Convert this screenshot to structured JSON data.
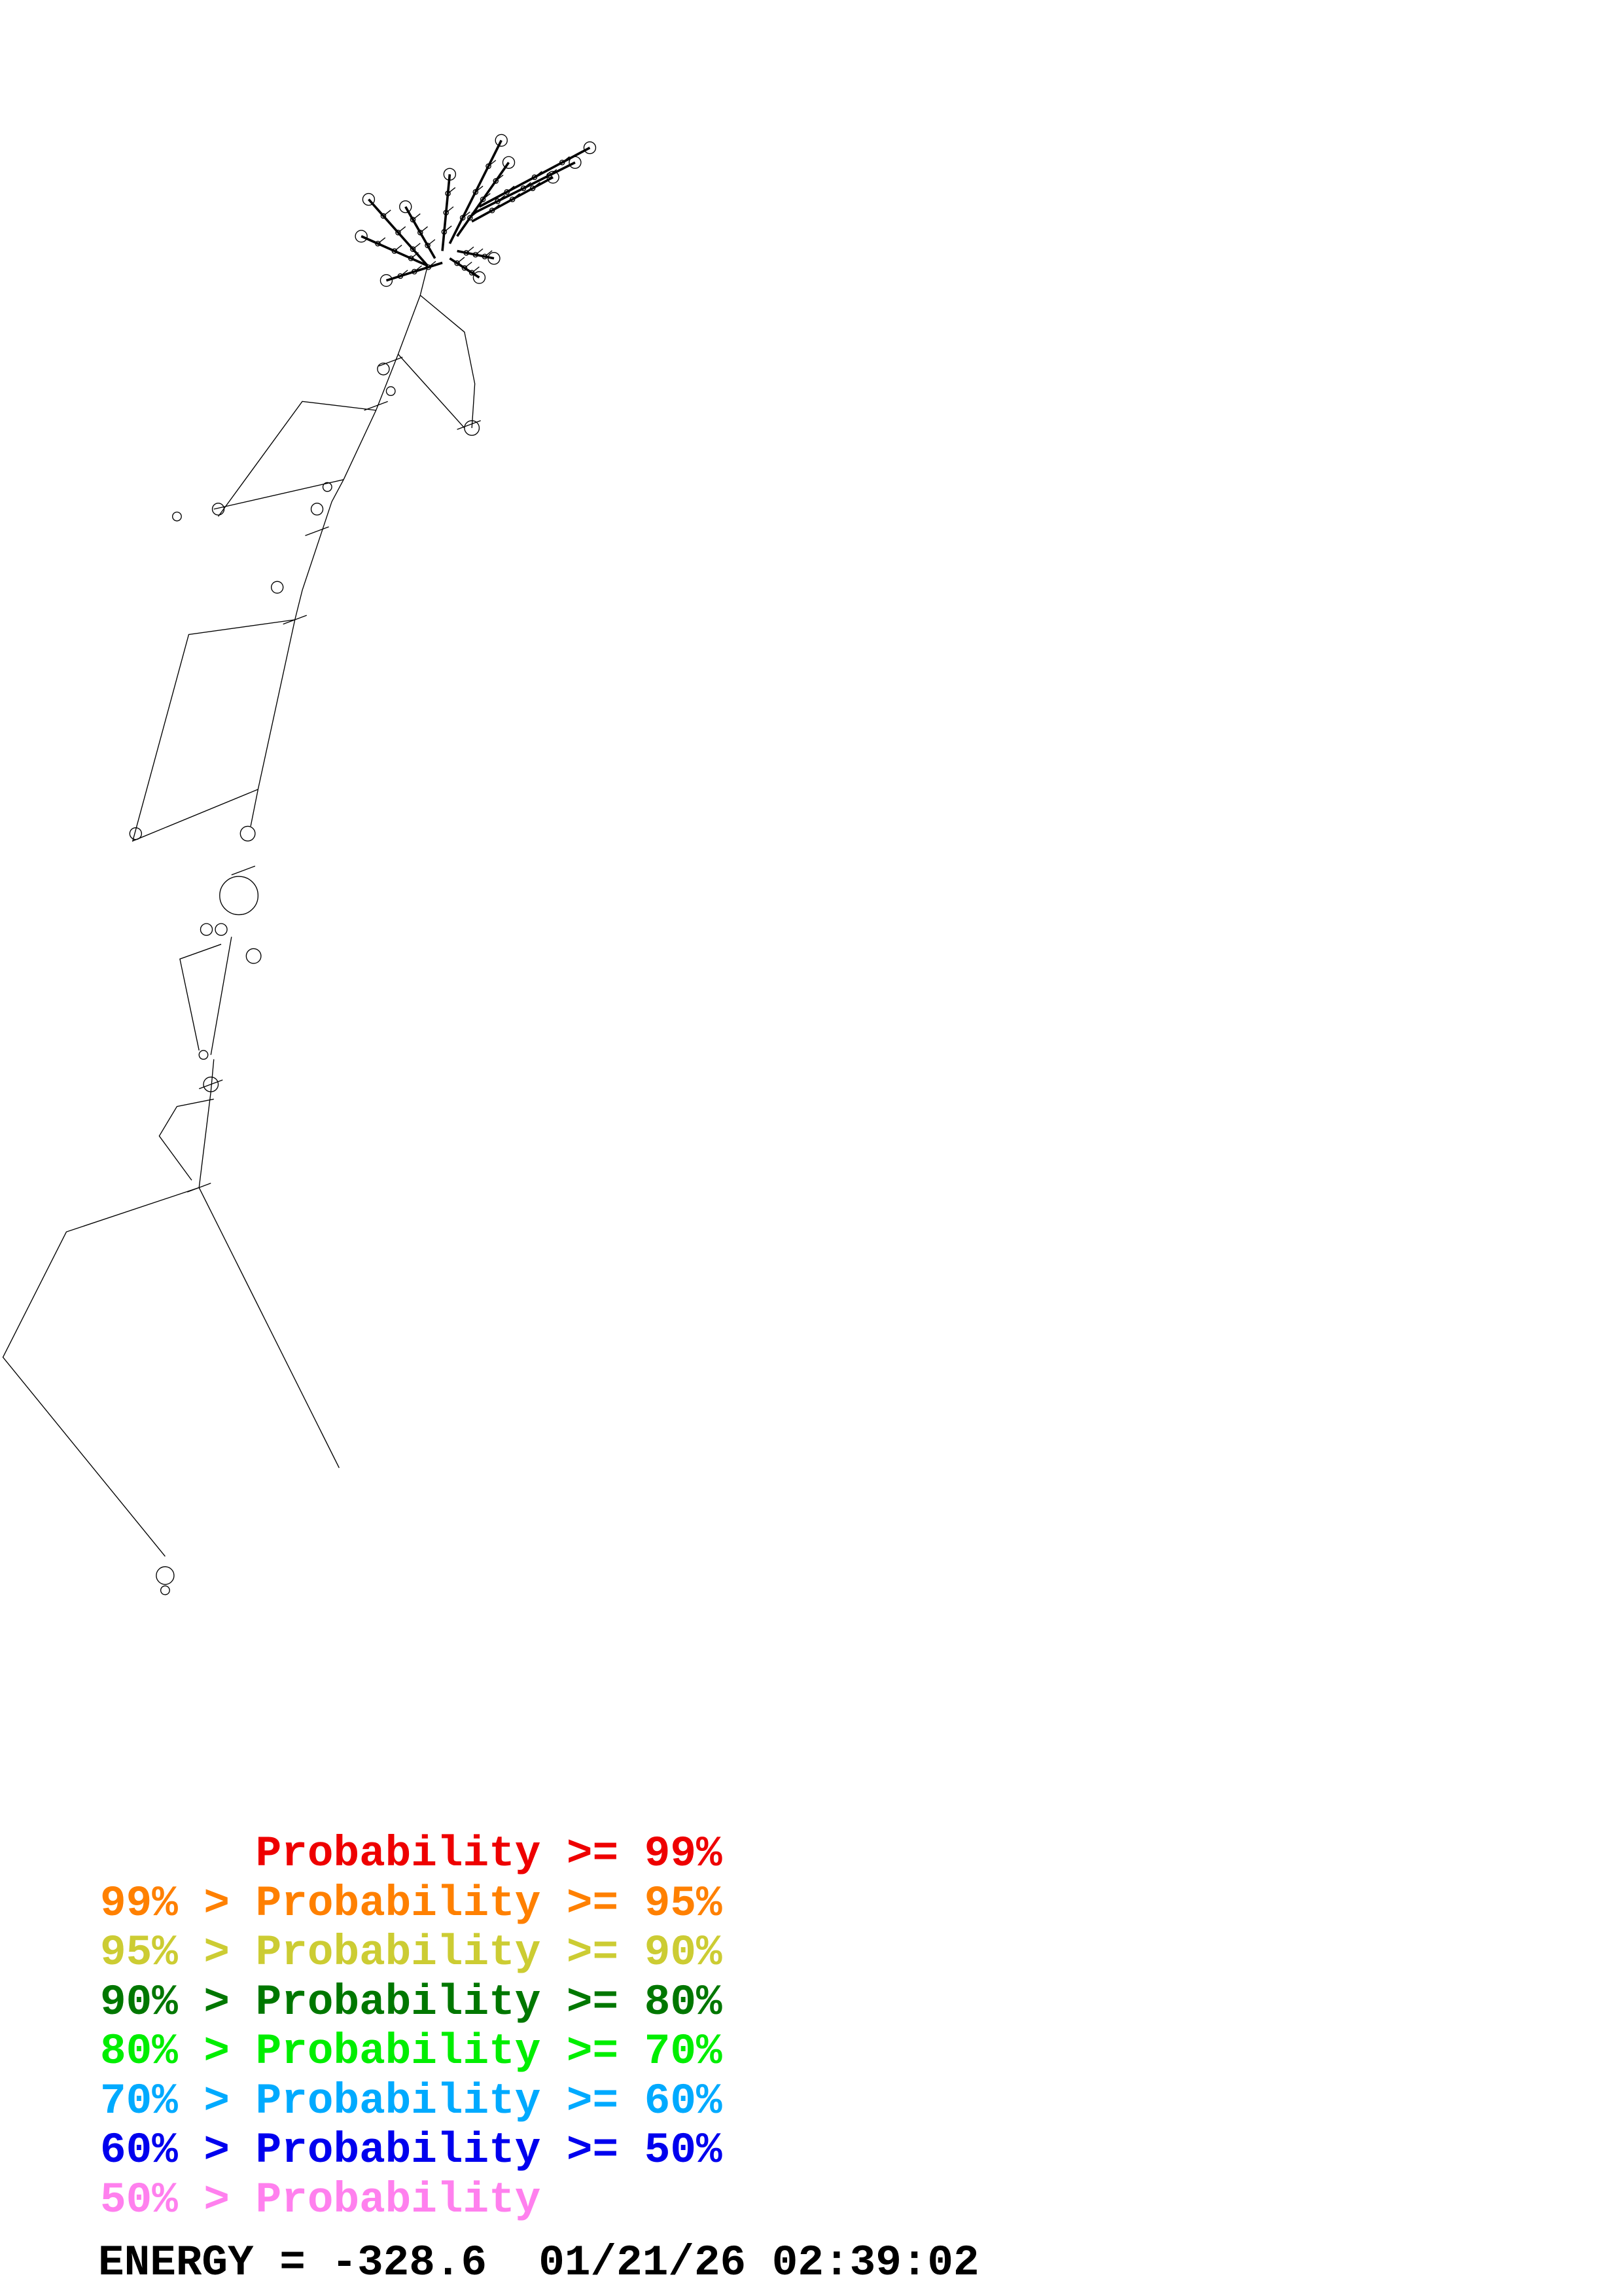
{
  "legend": [
    {
      "text": "      Probability >= 99%",
      "color": "#ee0000"
    },
    {
      "text": "99% > Probability >= 95%",
      "color": "#ff8000"
    },
    {
      "text": "95% > Probability >= 90%",
      "color": "#cccc33"
    },
    {
      "text": "90% > Probability >= 80%",
      "color": "#007700"
    },
    {
      "text": "80% > Probability >= 70%",
      "color": "#00ee00"
    },
    {
      "text": "70% > Probability >= 60%",
      "color": "#00aaff"
    },
    {
      "text": "60% > Probability >= 50%",
      "color": "#0000ee"
    },
    {
      "text": "50% > Probability",
      "color": "#ff80ee"
    }
  ],
  "footer": {
    "energy": "ENERGY = -328.6  01/21/26 02:39:02"
  },
  "structure": {
    "line_color": "#000000"
  }
}
